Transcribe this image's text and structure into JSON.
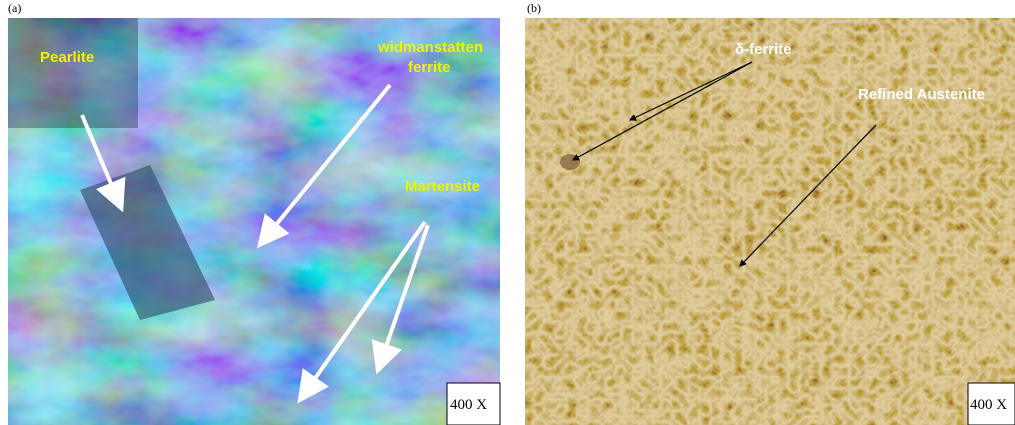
{
  "panels": [
    {
      "label": "(a)",
      "annotations": {
        "pearlite": "Pearlite",
        "widmanstatten": [
          "widmanstatten",
          "ferrite"
        ],
        "martensite": "Martensite"
      },
      "magnification": "400 X"
    },
    {
      "label": "(b)",
      "annotations": {
        "delta_ferrite": "δ-ferrite",
        "refined_austenite": "Refined Austenite"
      },
      "magnification": "400 X"
    }
  ]
}
